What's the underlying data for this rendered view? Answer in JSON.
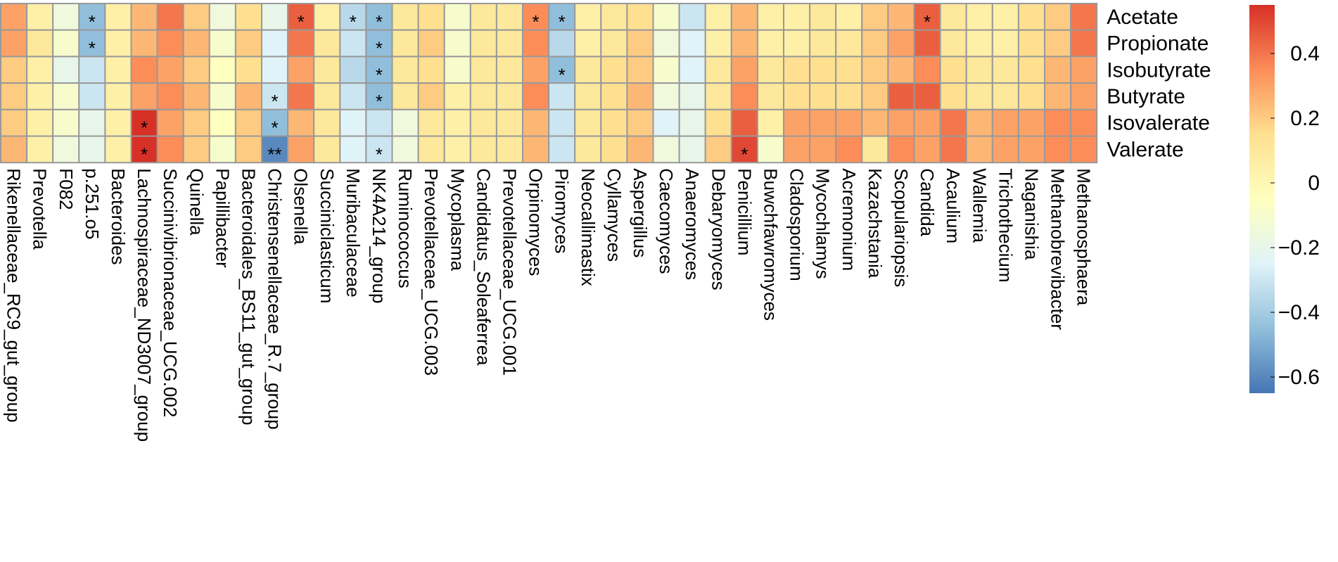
{
  "chart_data": {
    "type": "heatmap",
    "title": "",
    "xlabel": "",
    "ylabel": "",
    "rows": [
      "Acetate",
      "Propionate",
      "Isobutyrate",
      "Butyrate",
      "Isovalerate",
      "Valerate"
    ],
    "columns": [
      "Rikenellaceae_RC9_gut_group",
      "Prevotella",
      "F082",
      "p.251.o5",
      "Bacteroides",
      "Lachnospiraceae_ND3007_group",
      "Succinivibrionaceae_UCG.002",
      "Quinella",
      "Papillibacter",
      "Bacteroidales_BS11_gut_group",
      "Christensenellaceae_R.7_group",
      "Olsenella",
      "Succiniclasticum",
      "Muribaculaceae",
      "NK4A214_group",
      "Ruminococcus",
      "Prevotellaceae_UCG.003",
      "Mycoplasma",
      "Candidatus_Soleaferrea",
      "Prevotellaceae_UCG.001",
      "Orpinomyces",
      "Piromyces",
      "Neocallimastix",
      "Cyllamyces",
      "Aspergillus",
      "Caecomyces",
      "Anaeromyces",
      "Debaryomyces",
      "Penicillium",
      "Buwchfawromyces",
      "Cladosporium",
      "Mycochlamys",
      "Acremonium",
      "Kazachstania",
      "Scopulariopsis",
      "Candida",
      "Acaulium",
      "Wallemia",
      "Trichothecium",
      "Naganishia",
      "Methanobrevibacter",
      "Methanosphaera"
    ],
    "values": [
      [
        0.3,
        0.05,
        -0.15,
        -0.45,
        0.05,
        0.25,
        0.4,
        0.2,
        -0.15,
        0.15,
        -0.2,
        0.45,
        0.05,
        -0.35,
        -0.45,
        0.1,
        0.15,
        -0.1,
        0.1,
        0.1,
        0.35,
        -0.45,
        0.05,
        0.1,
        0.15,
        -0.1,
        -0.3,
        0.05,
        0.25,
        0.05,
        0.05,
        0.1,
        0.05,
        0.2,
        0.25,
        0.45,
        0.1,
        0.05,
        0.05,
        0.15,
        0.2,
        0.4
      ],
      [
        0.3,
        0.1,
        -0.1,
        -0.45,
        0.05,
        0.25,
        0.35,
        0.25,
        -0.1,
        0.2,
        -0.25,
        0.4,
        0.1,
        -0.3,
        -0.45,
        0.1,
        0.2,
        -0.1,
        0.1,
        0.1,
        0.35,
        -0.35,
        0.05,
        0.1,
        0.2,
        -0.15,
        -0.25,
        0.05,
        0.25,
        0.05,
        0.05,
        0.1,
        0.1,
        0.2,
        0.3,
        0.45,
        0.1,
        0.05,
        0.05,
        0.15,
        0.2,
        0.4
      ],
      [
        0.2,
        0.05,
        -0.2,
        -0.3,
        0.05,
        0.35,
        0.3,
        0.2,
        -0.05,
        0.15,
        -0.25,
        0.3,
        0.1,
        -0.35,
        -0.45,
        0.1,
        0.15,
        -0.1,
        0.1,
        0.1,
        0.3,
        -0.45,
        0.1,
        0.15,
        0.2,
        -0.1,
        -0.25,
        0.1,
        0.3,
        0.1,
        0.15,
        0.15,
        0.15,
        0.2,
        0.25,
        0.35,
        0.15,
        0.1,
        0.1,
        0.15,
        0.25,
        0.3
      ],
      [
        0.2,
        0.05,
        -0.1,
        -0.3,
        0.05,
        0.3,
        0.35,
        0.25,
        -0.1,
        0.25,
        -0.3,
        0.4,
        0.1,
        -0.3,
        -0.45,
        0.1,
        0.2,
        0.05,
        0.1,
        0.1,
        0.35,
        -0.3,
        0.1,
        0.15,
        0.25,
        -0.15,
        -0.2,
        0.1,
        0.35,
        0.1,
        0.15,
        0.15,
        0.15,
        0.2,
        0.45,
        0.45,
        0.15,
        0.1,
        0.1,
        0.15,
        0.25,
        0.3
      ],
      [
        0.2,
        0.05,
        -0.1,
        -0.2,
        0.05,
        0.55,
        0.3,
        0.2,
        -0.05,
        0.2,
        -0.45,
        0.25,
        0.1,
        -0.25,
        -0.3,
        -0.15,
        0.1,
        0.05,
        0.1,
        0.1,
        0.25,
        -0.3,
        0.1,
        0.15,
        0.2,
        -0.25,
        -0.2,
        0.15,
        0.45,
        0.05,
        0.3,
        0.3,
        0.3,
        0.25,
        0.3,
        0.3,
        0.4,
        0.25,
        0.3,
        0.3,
        0.35,
        0.35
      ],
      [
        0.25,
        0.05,
        -0.15,
        -0.2,
        0.05,
        0.55,
        0.35,
        0.2,
        -0.1,
        0.2,
        -0.6,
        0.3,
        0.1,
        -0.25,
        -0.3,
        -0.15,
        0.1,
        0.05,
        0.1,
        0.1,
        0.25,
        -0.3,
        0.1,
        0.15,
        0.25,
        -0.15,
        -0.2,
        0.2,
        0.5,
        -0.1,
        0.3,
        0.3,
        0.35,
        0.1,
        0.35,
        0.3,
        0.4,
        0.25,
        0.3,
        0.3,
        0.35,
        0.35
      ]
    ],
    "annotations": [
      [
        "",
        "",
        "",
        "*",
        "",
        "",
        "",
        "",
        "",
        "",
        "",
        "*",
        "",
        "*",
        "*",
        "",
        "",
        "",
        "",
        "",
        "*",
        "*",
        "",
        "",
        "",
        "",
        "",
        "",
        "",
        "",
        "",
        "",
        "",
        "",
        "",
        "*",
        "",
        "",
        "",
        "",
        "",
        ""
      ],
      [
        "",
        "",
        "",
        "*",
        "",
        "",
        "",
        "",
        "",
        "",
        "",
        "",
        "",
        "",
        "*",
        "",
        "",
        "",
        "",
        "",
        "",
        "",
        "",
        "",
        "",
        "",
        "",
        "",
        "",
        "",
        "",
        "",
        "",
        "",
        "",
        "",
        "",
        "",
        "",
        "",
        "",
        ""
      ],
      [
        "",
        "",
        "",
        "",
        "",
        "",
        "",
        "",
        "",
        "",
        "",
        "",
        "",
        "",
        "*",
        "",
        "",
        "",
        "",
        "",
        "",
        "*",
        "",
        "",
        "",
        "",
        "",
        "",
        "",
        "",
        "",
        "",
        "",
        "",
        "",
        "",
        "",
        "",
        "",
        "",
        "",
        ""
      ],
      [
        "",
        "",
        "",
        "",
        "",
        "",
        "",
        "",
        "",
        "",
        "*",
        "",
        "",
        "",
        "*",
        "",
        "",
        "",
        "",
        "",
        "",
        "",
        "",
        "",
        "",
        "",
        "",
        "",
        "",
        "",
        "",
        "",
        "",
        "",
        "",
        "",
        "",
        "",
        "",
        "",
        "",
        ""
      ],
      [
        "",
        "",
        "",
        "",
        "",
        "*",
        "",
        "",
        "",
        "",
        "*",
        "",
        "",
        "",
        "",
        "",
        "",
        "",
        "",
        "",
        "",
        "",
        "",
        "",
        "",
        "",
        "",
        "",
        "",
        "",
        "",
        "",
        "",
        "",
        "",
        "",
        "",
        "",
        "",
        "",
        "",
        ""
      ],
      [
        "",
        "",
        "",
        "",
        "",
        "*",
        "",
        "",
        "",
        "",
        "**",
        "",
        "",
        "",
        "*",
        "",
        "",
        "",
        "",
        "",
        "",
        "",
        "",
        "",
        "",
        "",
        "",
        "",
        "*",
        "",
        "",
        "",
        "",
        "",
        "",
        "",
        "",
        "",
        "",
        "",
        "",
        ""
      ]
    ],
    "colorbar": {
      "min": -0.65,
      "max": 0.55,
      "ticks": [
        0.4,
        0.2,
        0,
        -0.2,
        -0.4,
        -0.6
      ],
      "tick_labels": [
        "0.4",
        "0.2",
        "0",
        "−0.2",
        "−0.4",
        "−0.6"
      ],
      "colors": [
        "#4575b4",
        "#91bfdb",
        "#e0f3f8",
        "#ffffbf",
        "#fee090",
        "#fc8d59",
        "#d73027"
      ]
    },
    "grid_color": "#999999"
  }
}
